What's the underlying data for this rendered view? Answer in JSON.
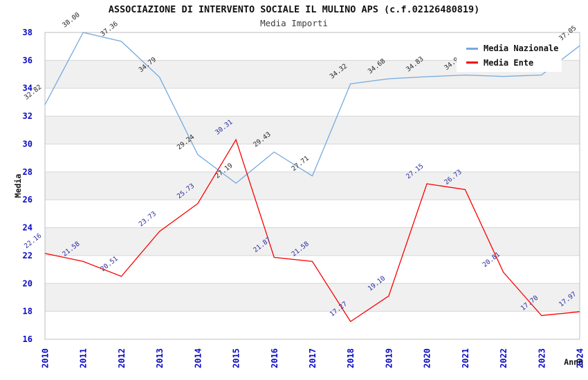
{
  "chart_data": {
    "type": "line",
    "title": "ASSOCIAZIONE DI INTERVENTO SOCIALE IL MULINO APS (c.f.02126480819)",
    "subtitle": "Media Importi",
    "xlabel": "Anno",
    "ylabel": "Media",
    "x": [
      2010,
      2011,
      2012,
      2013,
      2014,
      2015,
      2016,
      2017,
      2018,
      2019,
      2020,
      2021,
      2022,
      2023,
      2024
    ],
    "series": [
      {
        "name": "Media Nazionale",
        "color": "#74a9dd",
        "label_color": "#262626",
        "values": [
          32.82,
          38.0,
          37.36,
          34.79,
          29.24,
          27.19,
          29.43,
          27.71,
          34.32,
          34.68,
          34.83,
          34.95,
          34.85,
          34.95,
          37.05
        ]
      },
      {
        "name": "Media Ente",
        "color": "#f80000",
        "label_color": "#2a2aa0",
        "values": [
          22.16,
          21.58,
          20.51,
          23.73,
          25.73,
          30.31,
          21.87,
          21.58,
          17.27,
          19.1,
          27.15,
          26.73,
          20.81,
          17.7,
          17.97
        ]
      }
    ],
    "ylim": [
      16,
      38
    ],
    "ytick_step": 2,
    "grid": true,
    "legend_position": "top-right",
    "tick_label_color": "#0a0ac4",
    "band_color": "#f0f0f0",
    "grid_color": "#d6d6d6",
    "frame_color": "#bdbdbd",
    "background_color": "#ffffff"
  }
}
